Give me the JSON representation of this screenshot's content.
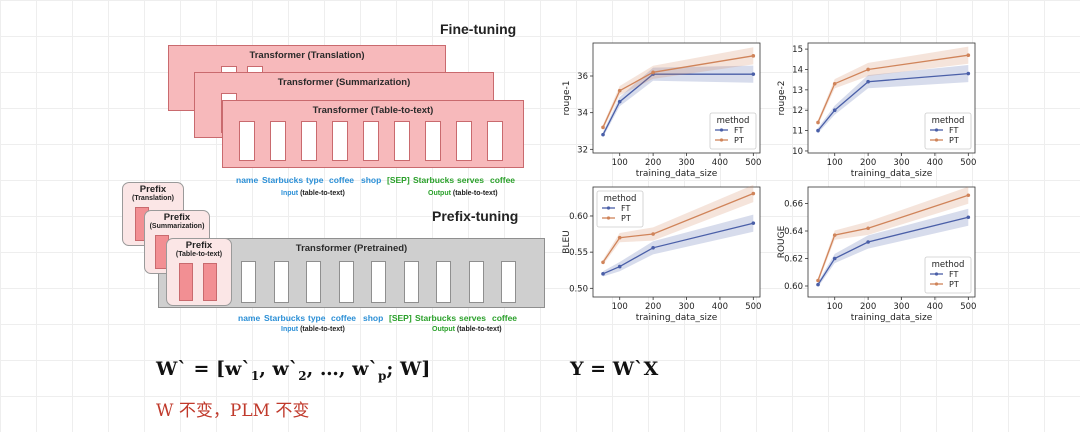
{
  "diagram": {
    "finetuning_title": "Fine-tuning",
    "prefixtuning_title": "Prefix-tuning",
    "transformers": [
      {
        "label": "Transformer (Translation)"
      },
      {
        "label": "Transformer (Summarization)"
      },
      {
        "label": "Transformer (Table-to-text)"
      }
    ],
    "pretrained_label": "Transformer  (Pretrained)",
    "prefixes": [
      {
        "title": "Prefix",
        "task": "(Translation)"
      },
      {
        "title": "Prefix",
        "task": "(Summarization)"
      },
      {
        "title": "Prefix",
        "task": "(Table-to-text)"
      }
    ],
    "input_tokens": [
      "name",
      "Starbucks",
      "type",
      "coffee",
      "shop"
    ],
    "output_tokens": [
      "[SEP]",
      "Starbucks",
      "serves",
      "coffee"
    ],
    "input_label": "Input",
    "input_suffix": "(table-to-text)",
    "output_label": "Output",
    "output_suffix": "(table-to-text)",
    "colors": {
      "input": "#2b8fd6",
      "output": "#2aa02a",
      "finetune_box": "#f7b9bb",
      "pretrained_box": "#cfcfcf"
    }
  },
  "formulas": {
    "w_prime_main": "W` = [w`",
    "sub1": "1",
    "comma1": ", w`",
    "sub2": "2",
    "middle": ", …, w`",
    "subp": "p",
    "end": "; W]",
    "y_formula": "Y = W`X",
    "note": "W 不变，PLM 不变"
  },
  "chart_data": [
    {
      "type": "line",
      "title": "",
      "xlabel": "training_data_size",
      "ylabel": "rouge-1",
      "x": [
        50,
        100,
        200,
        500
      ],
      "xticks": [
        100,
        200,
        300,
        400,
        500
      ],
      "yticks": [
        32,
        34,
        36
      ],
      "ylim": [
        31.8,
        37.8
      ],
      "xlim": [
        20,
        520
      ],
      "legend_title": "method",
      "legend_position": "lower-right",
      "series": [
        {
          "name": "FT",
          "values": [
            32.8,
            34.6,
            36.1,
            36.1
          ],
          "color": "#4a5fa8"
        },
        {
          "name": "PT",
          "values": [
            33.2,
            35.2,
            36.2,
            37.1
          ],
          "color": "#d0845a"
        }
      ]
    },
    {
      "type": "line",
      "title": "",
      "xlabel": "training_data_size",
      "ylabel": "rouge-2",
      "x": [
        50,
        100,
        200,
        500
      ],
      "xticks": [
        100,
        200,
        300,
        400,
        500
      ],
      "yticks": [
        10,
        11,
        12,
        13,
        14,
        15
      ],
      "ylim": [
        9.9,
        15.3
      ],
      "xlim": [
        20,
        520
      ],
      "legend_title": "method",
      "legend_position": "lower-right",
      "series": [
        {
          "name": "FT",
          "values": [
            11.0,
            12.0,
            13.4,
            13.8
          ],
          "color": "#4a5fa8"
        },
        {
          "name": "PT",
          "values": [
            11.4,
            13.3,
            14.0,
            14.7
          ],
          "color": "#d0845a"
        }
      ]
    },
    {
      "type": "line",
      "title": "",
      "xlabel": "training_data_size",
      "ylabel": "BLEU",
      "x": [
        50,
        100,
        200,
        500
      ],
      "xticks": [
        100,
        200,
        300,
        400,
        500
      ],
      "yticks": [
        0.5,
        0.55,
        0.6
      ],
      "ylim": [
        0.488,
        0.64
      ],
      "xlim": [
        20,
        520
      ],
      "legend_title": "method",
      "legend_position": "upper-left",
      "series": [
        {
          "name": "FT",
          "values": [
            0.52,
            0.53,
            0.556,
            0.59
          ],
          "color": "#4a5fa8"
        },
        {
          "name": "PT",
          "values": [
            0.536,
            0.57,
            0.575,
            0.631
          ],
          "color": "#d0845a"
        }
      ]
    },
    {
      "type": "line",
      "title": "",
      "xlabel": "training_data_size",
      "ylabel": "ROUGE",
      "x": [
        50,
        100,
        200,
        500
      ],
      "xticks": [
        100,
        200,
        300,
        400,
        500
      ],
      "yticks": [
        0.6,
        0.62,
        0.64,
        0.66
      ],
      "ylim": [
        0.592,
        0.672
      ],
      "xlim": [
        20,
        520
      ],
      "legend_title": "method",
      "legend_position": "lower-right",
      "series": [
        {
          "name": "FT",
          "values": [
            0.601,
            0.62,
            0.632,
            0.65
          ],
          "color": "#4a5fa8"
        },
        {
          "name": "PT",
          "values": [
            0.604,
            0.637,
            0.642,
            0.666
          ],
          "color": "#d0845a"
        }
      ]
    }
  ]
}
